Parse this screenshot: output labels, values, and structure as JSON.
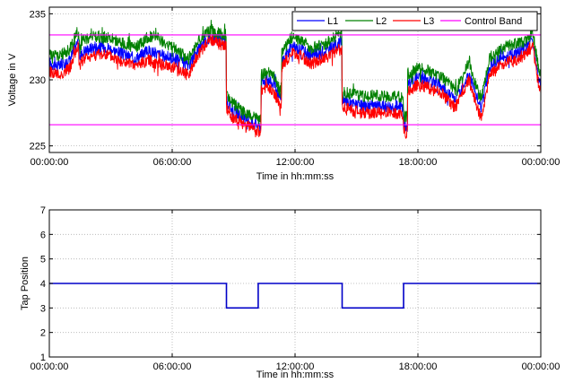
{
  "chart_data": [
    {
      "type": "line",
      "title": "",
      "xlabel": "Time in hh:mm:ss",
      "ylabel": "Voltage in V",
      "x_ticks": [
        "00:00:00",
        "06:00:00",
        "12:00:00",
        "18:00:00",
        "00:00:00"
      ],
      "xlim_hours": [
        0,
        24
      ],
      "ylim": [
        224.5,
        235.5
      ],
      "y_ticks": [
        225,
        230,
        235
      ],
      "grid": true,
      "legend_position": "top-right",
      "series": [
        {
          "name": "L1",
          "color": "#0000ff",
          "x_hours": [
            0,
            0.5,
            1.0,
            1.4,
            1.5,
            1.7,
            2.2,
            2.8,
            3.5,
            4.2,
            4.8,
            5.2,
            5.6,
            6.2,
            6.8,
            7.1,
            7.5,
            7.9,
            8.3,
            8.6,
            8.7,
            8.9,
            9.3,
            9.6,
            10.0,
            10.3,
            10.4,
            10.7,
            11.0,
            11.3,
            11.4,
            11.8,
            12.3,
            12.8,
            13.5,
            14.2,
            14.4,
            14.6,
            15.2,
            15.8,
            16.5,
            17.2,
            17.4,
            17.6,
            18.0,
            18.5,
            19.2,
            19.8,
            20.1,
            20.5,
            20.8,
            21.1,
            21.5,
            22.2,
            22.8,
            23.3,
            23.6,
            23.9,
            24.0
          ],
          "values": [
            231.3,
            231.0,
            231.5,
            233.0,
            231.8,
            232.2,
            232.5,
            232.5,
            232.0,
            231.6,
            232.2,
            232.0,
            231.8,
            231.6,
            231.0,
            232.0,
            232.8,
            233.3,
            233.0,
            233.0,
            228.3,
            227.8,
            227.3,
            227.0,
            226.7,
            226.5,
            229.8,
            230.0,
            229.5,
            228.5,
            231.5,
            232.5,
            232.3,
            231.8,
            232.2,
            232.8,
            228.5,
            228.3,
            228.0,
            228.0,
            228.0,
            228.0,
            226.5,
            229.8,
            230.2,
            230.0,
            229.5,
            228.5,
            229.3,
            230.5,
            229.0,
            227.8,
            231.0,
            231.8,
            232.0,
            232.5,
            233.0,
            230.0,
            229.5
          ]
        },
        {
          "name": "L2",
          "color": "#008000",
          "x_hours": [
            0,
            0.5,
            1.0,
            1.4,
            1.5,
            1.7,
            2.2,
            2.8,
            3.5,
            4.2,
            4.8,
            5.2,
            5.6,
            6.2,
            6.8,
            7.1,
            7.5,
            7.9,
            8.3,
            8.6,
            8.7,
            8.9,
            9.3,
            9.6,
            10.0,
            10.3,
            10.4,
            10.7,
            11.0,
            11.3,
            11.4,
            11.8,
            12.3,
            12.8,
            13.5,
            14.2,
            14.4,
            14.6,
            15.2,
            15.8,
            16.5,
            17.2,
            17.4,
            17.6,
            18.0,
            18.5,
            19.2,
            19.8,
            20.1,
            20.5,
            20.8,
            21.1,
            21.5,
            22.2,
            22.8,
            23.3,
            23.6,
            23.9,
            24.0
          ],
          "values": [
            232.0,
            231.8,
            232.3,
            233.7,
            232.6,
            233.1,
            233.3,
            233.2,
            232.8,
            232.4,
            233.2,
            233.3,
            232.8,
            232.3,
            231.6,
            232.5,
            233.3,
            233.8,
            233.5,
            233.4,
            228.8,
            228.3,
            227.8,
            227.5,
            227.2,
            227.0,
            230.5,
            230.5,
            230.2,
            229.0,
            232.1,
            233.2,
            233.0,
            232.4,
            232.7,
            233.6,
            229.0,
            229.0,
            228.8,
            228.8,
            228.7,
            228.7,
            227.2,
            230.5,
            230.9,
            230.7,
            230.2,
            229.2,
            229.9,
            231.5,
            229.7,
            228.5,
            231.7,
            232.5,
            232.7,
            233.0,
            233.7,
            230.8,
            230.3
          ]
        },
        {
          "name": "L3",
          "color": "#ff0000",
          "x_hours": [
            0,
            0.5,
            1.0,
            1.4,
            1.5,
            1.7,
            2.2,
            2.8,
            3.5,
            4.2,
            4.8,
            5.2,
            5.6,
            6.2,
            6.8,
            7.1,
            7.5,
            7.9,
            8.3,
            8.6,
            8.7,
            8.9,
            9.3,
            9.6,
            10.0,
            10.3,
            10.4,
            10.7,
            11.0,
            11.3,
            11.4,
            11.8,
            12.3,
            12.8,
            13.5,
            14.2,
            14.4,
            14.6,
            15.2,
            15.8,
            16.5,
            17.2,
            17.4,
            17.6,
            18.0,
            18.5,
            19.2,
            19.8,
            20.1,
            20.5,
            20.8,
            21.1,
            21.5,
            22.2,
            22.8,
            23.3,
            23.6,
            23.9,
            24.0
          ],
          "values": [
            230.7,
            230.3,
            230.9,
            232.5,
            231.1,
            231.6,
            231.9,
            231.9,
            231.4,
            231.0,
            231.5,
            231.3,
            231.1,
            230.9,
            230.3,
            231.5,
            232.4,
            233.0,
            232.7,
            232.6,
            227.8,
            227.2,
            226.8,
            226.6,
            226.3,
            226.0,
            229.2,
            229.4,
            228.9,
            228.0,
            231.0,
            232.0,
            231.8,
            231.2,
            231.7,
            232.3,
            227.9,
            227.8,
            227.5,
            227.5,
            227.5,
            227.4,
            226.0,
            229.2,
            229.6,
            229.4,
            228.9,
            227.9,
            228.7,
            230.0,
            228.4,
            227.0,
            230.4,
            231.2,
            231.5,
            232.0,
            232.6,
            229.5,
            229.0
          ]
        },
        {
          "name": "Control Band",
          "color": "#ff00ff",
          "bands": [
            233.4,
            226.6
          ]
        }
      ]
    },
    {
      "type": "line",
      "title": "",
      "xlabel": "Time in hh:mm:ss",
      "ylabel": "Tap Position",
      "x_ticks": [
        "00:00:00",
        "06:00:00",
        "12:00:00",
        "18:00:00",
        "00:00:00"
      ],
      "xlim_hours": [
        0,
        24
      ],
      "ylim": [
        1,
        7
      ],
      "y_ticks": [
        1,
        2,
        3,
        4,
        5,
        6,
        7
      ],
      "grid": true,
      "series": [
        {
          "color": "#0000c8",
          "step": true,
          "x_hours": [
            0,
            8.65,
            8.65,
            10.2,
            10.2,
            14.3,
            14.3,
            17.3,
            17.3,
            24
          ],
          "values": [
            4,
            4,
            3,
            3,
            4,
            4,
            3,
            3,
            4,
            4
          ]
        }
      ]
    }
  ]
}
